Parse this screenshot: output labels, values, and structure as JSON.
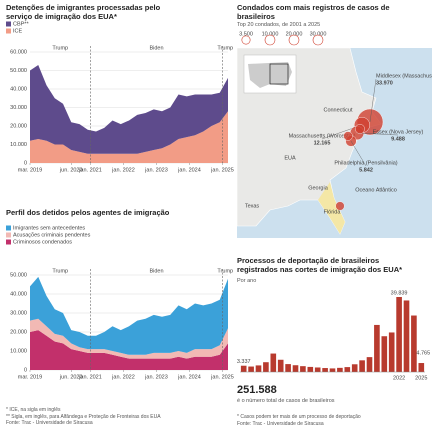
{
  "chart_data": [
    {
      "type": "stacked-area",
      "title": "Detenções de imigrantes processadas pelo serviço de imigração dos EUA*",
      "x": [
        "2019-03",
        "2019-06",
        "2019-09",
        "2019-12",
        "2020-03",
        "2020-06",
        "2020-09",
        "2020-12",
        "2021-03",
        "2021-06",
        "2021-09",
        "2021-12",
        "2022-03",
        "2022-06",
        "2022-09",
        "2022-12",
        "2023-03",
        "2023-06",
        "2023-09",
        "2023-12",
        "2024-03",
        "2024-06",
        "2024-09",
        "2024-12",
        "2025-03"
      ],
      "series": [
        {
          "name": "ICE",
          "color": "#f29c86",
          "values": [
            12000,
            13000,
            12000,
            10000,
            10000,
            7000,
            6000,
            5000,
            5000,
            5000,
            5000,
            5000,
            5000,
            5000,
            6000,
            7000,
            8000,
            10000,
            13000,
            14000,
            15000,
            17000,
            20000,
            22000,
            28000
          ]
        },
        {
          "name": "CBP**",
          "color": "#5e4b8c",
          "values": [
            38000,
            40000,
            30000,
            25000,
            22000,
            15000,
            15000,
            13000,
            12000,
            14000,
            18000,
            16000,
            18000,
            21000,
            21000,
            22000,
            20000,
            20000,
            24000,
            22000,
            22000,
            20000,
            17000,
            16000,
            18000
          ]
        }
      ],
      "ylim": [
        0,
        60000
      ],
      "yticks": [
        0,
        {
          "value": 10000,
          "label": "10.000"
        },
        {
          "value": 20000,
          "label": "20.000"
        },
        {
          "value": 30000,
          "label": "30.000"
        },
        {
          "value": 40000,
          "label": "40.000"
        },
        {
          "value": 50000,
          "label": "50.000"
        },
        {
          "value": 60000,
          "label": "60.000"
        }
      ],
      "xticks": [
        {
          "value": "2019-03",
          "label": "mar. 2019"
        },
        {
          "value": "2020-06",
          "label": "jun. 2020"
        },
        {
          "value": "2021-01",
          "label": "jan. 2021"
        },
        {
          "value": "2022-01",
          "label": "jan. 2022"
        },
        {
          "value": "2023-01",
          "label": "jan. 2023"
        },
        {
          "value": "2024-01",
          "label": "jan. 2024"
        },
        {
          "value": "2025-01",
          "label": "jan. 2025"
        }
      ],
      "periods": [
        "Trump",
        "Biden",
        "Trump"
      ],
      "period_lines": [
        "2021-01",
        "2025-01"
      ],
      "grid": true
    },
    {
      "type": "stacked-area",
      "title": "Perfil dos detidos pelos agentes de imigração",
      "x": [
        "2019-03",
        "2019-06",
        "2019-09",
        "2019-12",
        "2020-03",
        "2020-06",
        "2020-09",
        "2020-12",
        "2021-03",
        "2021-06",
        "2021-09",
        "2021-12",
        "2022-03",
        "2022-06",
        "2022-09",
        "2022-12",
        "2023-03",
        "2023-06",
        "2023-09",
        "2023-12",
        "2024-03",
        "2024-06",
        "2024-09",
        "2024-12",
        "2025-03"
      ],
      "series": [
        {
          "name": "Criminosos condenados",
          "color": "#c2306b",
          "values": [
            20000,
            21000,
            18000,
            15000,
            14000,
            11000,
            10000,
            9000,
            9000,
            9000,
            8000,
            7000,
            6000,
            6000,
            6000,
            6000,
            6000,
            6000,
            7000,
            6000,
            7000,
            7000,
            7000,
            8000,
            14000
          ]
        },
        {
          "name": "Acusações criminais pendentes",
          "color": "#f2b9b4",
          "values": [
            6000,
            6000,
            5000,
            4000,
            4000,
            3000,
            2000,
            2000,
            2000,
            2000,
            2000,
            2000,
            2000,
            2000,
            2000,
            3000,
            3000,
            3000,
            3000,
            3000,
            4000,
            4000,
            4000,
            5000,
            8000
          ]
        },
        {
          "name": "Imigrantes sem antecedentes",
          "color": "#3ba1d9",
          "values": [
            18000,
            22000,
            16000,
            13000,
            12000,
            7000,
            8000,
            7000,
            7000,
            9000,
            13000,
            12000,
            15000,
            18000,
            19000,
            20000,
            19000,
            20000,
            24000,
            23000,
            24000,
            23000,
            24000,
            24000,
            26000
          ]
        }
      ],
      "ylim": [
        0,
        50000
      ],
      "yticks": [
        0,
        {
          "value": 10000,
          "label": "10.000"
        },
        {
          "value": 20000,
          "label": "20.000"
        },
        {
          "value": 30000,
          "label": "30.000"
        },
        {
          "value": 40000,
          "label": "40.000"
        },
        {
          "value": 50000,
          "label": "50.000"
        }
      ],
      "xticks": [
        {
          "value": "2019-03",
          "label": "mar. 2019"
        },
        {
          "value": "2020-06",
          "label": "jun. 2020"
        },
        {
          "value": "2021-01",
          "label": "jan. 2021"
        },
        {
          "value": "2022-01",
          "label": "jan. 2022"
        },
        {
          "value": "2023-01",
          "label": "jan. 2023"
        },
        {
          "value": "2024-01",
          "label": "jan. 2024"
        },
        {
          "value": "2025-01",
          "label": "jan. 2025"
        }
      ],
      "periods": [
        "Trump",
        "Biden",
        "Trump"
      ],
      "period_lines": [
        "2021-01",
        "2025-01"
      ],
      "grid": true,
      "notes": [
        "* ICE, na sigla em inglês",
        "** Sigla, em inglês, para Alfândega e Proteção de Fronteiras dos EUA",
        "Fonte: Trac - Universidade de Siracusa"
      ]
    },
    {
      "type": "bubble-map",
      "title": "Condados com mais registros de casos de brasileiros",
      "subtitle": "Top 20 condados, de 2001 a 2025",
      "size_legend": [
        {
          "value": 3500,
          "label": "3.500"
        },
        {
          "value": 10000,
          "label": "10.000"
        },
        {
          "value": 20000,
          "label": "20.000"
        },
        {
          "value": 30000,
          "label": "30.000"
        }
      ],
      "color": "#d0402f",
      "points": [
        {
          "name": "Middlesex (Massachusetts)",
          "value": 33970,
          "value_label": "33.970"
        },
        {
          "name": "Massachusetts (Worcester)",
          "value": 12165,
          "value_label": "12.165"
        },
        {
          "name": "Essex (Nova Jersey)",
          "value": 9488,
          "value_label": "9.488"
        },
        {
          "name": "Philadelphia (Pensilvânia)",
          "value": 5842,
          "value_label": "5.842"
        },
        {
          "name": null,
          "value": 4500,
          "value_label": null
        },
        {
          "name": null,
          "value": 4000,
          "value_label": null
        },
        {
          "name": null,
          "value": 3800,
          "value_label": null
        }
      ],
      "map_labels": [
        "EUA",
        "Texas",
        "Georgia",
        "Flórida",
        "Oceano Atlântico",
        "Connecticut"
      ]
    },
    {
      "type": "bar",
      "title": "Processos de deportação de brasileiros registrados nas cortes de imigração dos EUA*",
      "subtitle": "Por ano",
      "color": "#b83a2e",
      "categories": [
        null,
        null,
        null,
        null,
        null,
        null,
        null,
        null,
        null,
        null,
        null,
        null,
        null,
        null,
        null,
        null,
        null,
        null,
        null,
        null,
        null,
        "2022",
        null,
        null,
        "2025"
      ],
      "values": [
        3337,
        2900,
        3500,
        5200,
        9800,
        6500,
        4200,
        3600,
        3100,
        2700,
        2400,
        2100,
        1900,
        2200,
        2600,
        4100,
        6200,
        7900,
        25000,
        19000,
        21000,
        39839,
        38000,
        30000,
        4765
      ],
      "value_labels": [
        "3.337",
        null,
        null,
        null,
        null,
        null,
        null,
        null,
        null,
        null,
        null,
        null,
        null,
        null,
        null,
        null,
        null,
        null,
        null,
        null,
        null,
        "39.839",
        null,
        null,
        "4.765"
      ],
      "total": "251.588",
      "total_text": "é o número total de casos de brasileiros",
      "notes": [
        "* Casos podem ter mais de um processo de deportação",
        "Fonte: Trac - Universidade de Siracusa"
      ]
    }
  ]
}
